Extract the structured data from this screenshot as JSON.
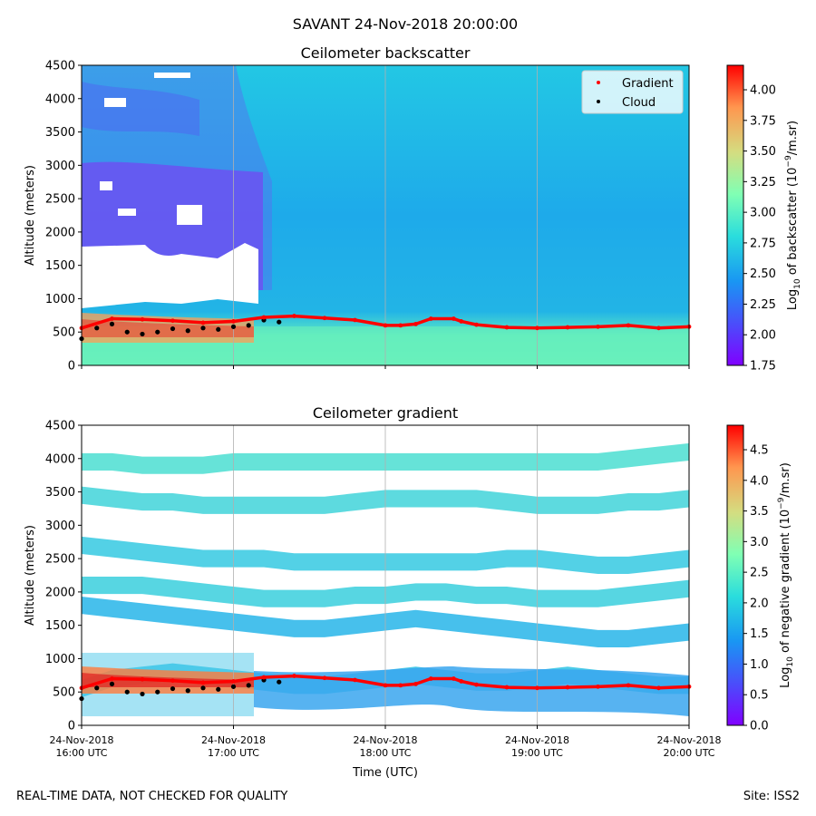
{
  "suptitle": "SAVANT 24-Nov-2018 20:00:00",
  "footer_left": "REAL-TIME DATA, NOT CHECKED FOR QUALITY",
  "footer_right": "Site: ISS2",
  "time_axis": {
    "xlabel": "Time (UTC)",
    "range_hours": [
      16.0,
      20.0
    ],
    "ticks": [
      {
        "value": 16,
        "line1": "24-Nov-2018",
        "line2": "16:00 UTC"
      },
      {
        "value": 17,
        "line1": "24-Nov-2018",
        "line2": "17:00 UTC"
      },
      {
        "value": 18,
        "line1": "24-Nov-2018",
        "line2": "18:00 UTC"
      },
      {
        "value": 19,
        "line1": "24-Nov-2018",
        "line2": "19:00 UTC"
      },
      {
        "value": 20,
        "line1": "24-Nov-2018",
        "line2": "20:00 UTC"
      }
    ]
  },
  "legend": {
    "gradient": "Gradient",
    "cloud": "Cloud"
  },
  "chart_data": [
    {
      "type": "heatmap",
      "title": "Ceilometer backscatter",
      "xlabel": "",
      "ylabel": "Altitude (meters)",
      "ylim": [
        0,
        4500
      ],
      "yticks": [
        "0",
        "500",
        "1000",
        "1500",
        "2000",
        "2500",
        "3000",
        "3500",
        "4000",
        "4500"
      ],
      "colorbar": {
        "label_prefix": "Log",
        "label_sub": "10",
        "label_mid": " of backscatter (10",
        "label_sup": "−9",
        "label_suffix": "/m.sr)",
        "range": [
          1.75,
          4.2
        ],
        "ticks": [
          "1.75",
          "2.00",
          "2.25",
          "2.50",
          "2.75",
          "3.00",
          "3.25",
          "3.50",
          "3.75",
          "4.00"
        ]
      },
      "legend_entries": [
        "Gradient",
        "Cloud"
      ],
      "gradient_series": {
        "name": "Gradient",
        "x_hours": [
          16.0,
          16.2,
          16.4,
          16.6,
          16.8,
          17.0,
          17.2,
          17.4,
          17.6,
          17.8,
          18.0,
          18.1,
          18.2,
          18.3,
          18.45,
          18.5,
          18.6,
          18.8,
          19.0,
          19.2,
          19.4,
          19.6,
          19.8,
          20.0
        ],
        "altitude_m": [
          560,
          700,
          690,
          670,
          640,
          660,
          720,
          740,
          710,
          680,
          600,
          600,
          620,
          700,
          700,
          660,
          610,
          570,
          560,
          570,
          580,
          600,
          560,
          580
        ]
      },
      "cloud_series": {
        "name": "Cloud",
        "x_hours": [
          16.0,
          16.1,
          16.2,
          16.3,
          16.4,
          16.5,
          16.6,
          16.7,
          16.8,
          16.9,
          17.0,
          17.1,
          17.2,
          17.3
        ],
        "altitude_m": [
          400,
          560,
          620,
          500,
          470,
          500,
          550,
          520,
          560,
          540,
          580,
          600,
          680,
          650
        ]
      }
    },
    {
      "type": "heatmap",
      "title": "Ceilometer gradient",
      "xlabel": "Time (UTC)",
      "ylabel": "Altitude (meters)",
      "ylim": [
        0,
        4500
      ],
      "yticks": [
        "0",
        "500",
        "1000",
        "1500",
        "2000",
        "2500",
        "3000",
        "3500",
        "4000",
        "4500"
      ],
      "colorbar": {
        "label_prefix": "Log",
        "label_sub": "10",
        "label_mid": " of negative gradient (10",
        "label_sup": "−9",
        "label_suffix": "/m.sr)",
        "range": [
          0.0,
          4.9
        ],
        "ticks": [
          "0.0",
          "0.5",
          "1.0",
          "1.5",
          "2.0",
          "2.5",
          "3.0",
          "3.5",
          "4.0",
          "4.5"
        ]
      },
      "gradient_series": {
        "name": "Gradient",
        "x_hours": [
          16.0,
          16.2,
          16.4,
          16.6,
          16.8,
          17.0,
          17.2,
          17.4,
          17.6,
          17.8,
          18.0,
          18.1,
          18.2,
          18.3,
          18.45,
          18.5,
          18.6,
          18.8,
          19.0,
          19.2,
          19.4,
          19.6,
          19.8,
          20.0
        ],
        "altitude_m": [
          560,
          700,
          690,
          670,
          640,
          660,
          720,
          740,
          710,
          680,
          600,
          600,
          620,
          700,
          700,
          660,
          610,
          570,
          560,
          570,
          580,
          600,
          560,
          580
        ]
      },
      "cloud_series": {
        "name": "Cloud",
        "x_hours": [
          16.0,
          16.1,
          16.2,
          16.3,
          16.4,
          16.5,
          16.6,
          16.7,
          16.8,
          16.9,
          17.0,
          17.1,
          17.2,
          17.3
        ],
        "altitude_m": [
          400,
          560,
          620,
          500,
          470,
          500,
          550,
          520,
          560,
          540,
          580,
          600,
          680,
          650
        ]
      },
      "gradient_layers": [
        {
          "alt_m": [
            550,
            700,
            750,
            800,
            750,
            700,
            650,
            600,
            600,
            650,
            700,
            750,
            700,
            650,
            650,
            700,
            750,
            700,
            650,
            600,
            600
          ]
        },
        {
          "alt_m": [
            1800,
            1750,
            1700,
            1650,
            1600,
            1550,
            1500,
            1450,
            1450,
            1500,
            1550,
            1600,
            1550,
            1500,
            1450,
            1400,
            1350,
            1300,
            1300,
            1350,
            1400
          ]
        },
        {
          "alt_m": [
            2100,
            2100,
            2100,
            2050,
            2000,
            1950,
            1900,
            1900,
            1900,
            1950,
            1950,
            2000,
            2000,
            1950,
            1950,
            1900,
            1900,
            1900,
            1950,
            2000,
            2050
          ]
        },
        {
          "alt_m": [
            2700,
            2650,
            2600,
            2550,
            2500,
            2500,
            2500,
            2450,
            2450,
            2450,
            2450,
            2450,
            2450,
            2450,
            2500,
            2500,
            2450,
            2400,
            2400,
            2450,
            2500
          ]
        },
        {
          "alt_m": [
            3450,
            3400,
            3350,
            3350,
            3300,
            3300,
            3300,
            3300,
            3300,
            3350,
            3400,
            3400,
            3400,
            3400,
            3350,
            3300,
            3300,
            3300,
            3350,
            3350,
            3400
          ]
        },
        {
          "alt_m": [
            3950,
            3950,
            3900,
            3900,
            3900,
            3950,
            3950,
            3950,
            3950,
            3950,
            3950,
            3950,
            3950,
            3950,
            3950,
            3950,
            3950,
            3950,
            4000,
            4050,
            4100
          ]
        }
      ]
    }
  ]
}
